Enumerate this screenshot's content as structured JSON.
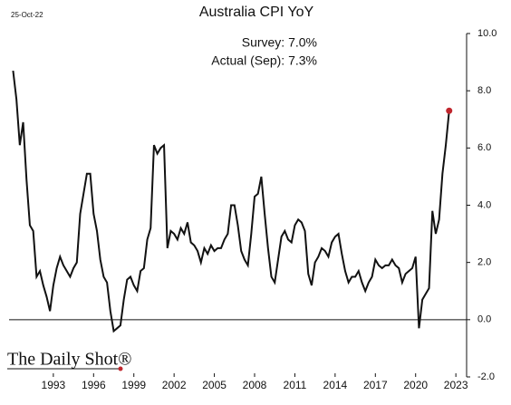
{
  "chart_data": {
    "type": "line",
    "title": "Australia CPI YoY",
    "date": "25-Oct-22",
    "annotations": [
      "Survey: 7.0%",
      "Actual (Sep): 7.3%"
    ],
    "source": "The Daily Shot®",
    "x": [
      1990.0,
      1990.25,
      1990.5,
      1990.75,
      1991.0,
      1991.25,
      1991.5,
      1991.75,
      1992.0,
      1992.25,
      1992.5,
      1992.75,
      1993.0,
      1993.25,
      1993.5,
      1993.75,
      1994.0,
      1994.25,
      1994.5,
      1994.75,
      1995.0,
      1995.25,
      1995.5,
      1995.75,
      1996.0,
      1996.25,
      1996.5,
      1996.75,
      1997.0,
      1997.25,
      1997.5,
      1997.75,
      1998.0,
      1998.25,
      1998.5,
      1998.75,
      1999.0,
      1999.25,
      1999.5,
      1999.75,
      2000.0,
      2000.25,
      2000.5,
      2000.75,
      2001.0,
      2001.25,
      2001.5,
      2001.75,
      2002.0,
      2002.25,
      2002.5,
      2002.75,
      2003.0,
      2003.25,
      2003.5,
      2003.75,
      2004.0,
      2004.25,
      2004.5,
      2004.75,
      2005.0,
      2005.25,
      2005.5,
      2005.75,
      2006.0,
      2006.25,
      2006.5,
      2006.75,
      2007.0,
      2007.25,
      2007.5,
      2007.75,
      2008.0,
      2008.25,
      2008.5,
      2008.75,
      2009.0,
      2009.25,
      2009.5,
      2009.75,
      2010.0,
      2010.25,
      2010.5,
      2010.75,
      2011.0,
      2011.25,
      2011.5,
      2011.75,
      2012.0,
      2012.25,
      2012.5,
      2012.75,
      2013.0,
      2013.25,
      2013.5,
      2013.75,
      2014.0,
      2014.25,
      2014.5,
      2014.75,
      2015.0,
      2015.25,
      2015.5,
      2015.75,
      2016.0,
      2016.25,
      2016.5,
      2016.75,
      2017.0,
      2017.25,
      2017.5,
      2017.75,
      2018.0,
      2018.25,
      2018.5,
      2018.75,
      2019.0,
      2019.25,
      2019.5,
      2019.75,
      2020.0,
      2020.25,
      2020.5,
      2020.75,
      2021.0,
      2021.25,
      2021.5,
      2021.75,
      2022.0,
      2022.25,
      2022.5
    ],
    "series": [
      {
        "color": "#111111",
        "highlight_color": "#c0262d",
        "values": [
          8.7,
          7.7,
          6.1,
          6.9,
          4.9,
          3.3,
          3.1,
          1.5,
          1.7,
          1.2,
          0.8,
          0.3,
          1.2,
          1.8,
          2.2,
          1.9,
          1.7,
          1.5,
          1.8,
          2.0,
          3.7,
          4.4,
          5.1,
          5.1,
          3.7,
          3.1,
          2.1,
          1.5,
          1.3,
          0.3,
          -0.4,
          -0.3,
          -0.2,
          0.7,
          1.4,
          1.5,
          1.2,
          1.0,
          1.7,
          1.8,
          2.8,
          3.2,
          6.1,
          5.8,
          6.0,
          6.1,
          2.5,
          3.1,
          3.0,
          2.8,
          3.2,
          3.0,
          3.4,
          2.7,
          2.6,
          2.4,
          2.0,
          2.5,
          2.3,
          2.6,
          2.4,
          2.5,
          2.5,
          2.8,
          3.0,
          4.0,
          4.0,
          3.3,
          2.4,
          2.1,
          1.9,
          3.0,
          4.3,
          4.4,
          5.0,
          3.7,
          2.5,
          1.5,
          1.3,
          2.1,
          2.9,
          3.1,
          2.8,
          2.7,
          3.3,
          3.5,
          3.4,
          3.1,
          1.6,
          1.2,
          2.0,
          2.2,
          2.5,
          2.4,
          2.2,
          2.7,
          2.9,
          3.0,
          2.3,
          1.7,
          1.3,
          1.5,
          1.5,
          1.7,
          1.3,
          1.0,
          1.3,
          1.5,
          2.1,
          1.9,
          1.8,
          1.9,
          1.9,
          2.1,
          1.9,
          1.8,
          1.3,
          1.6,
          1.7,
          1.8,
          2.2,
          -0.3,
          0.7,
          0.9,
          1.1,
          3.8,
          3.0,
          3.5,
          5.1,
          6.1,
          7.3
        ]
      }
    ],
    "xlim": [
      1989.7,
      2023.8
    ],
    "xticks": [
      1993,
      1996,
      1999,
      2002,
      2005,
      2008,
      2011,
      2014,
      2017,
      2020,
      2023
    ],
    "ylim": [
      -2,
      10
    ],
    "yticks": [
      {
        "value": -2,
        "label": "-2.0"
      },
      {
        "value": 0,
        "label": "0.0"
      },
      {
        "value": 2,
        "label": "2.0"
      },
      {
        "value": 4,
        "label": "4.0"
      },
      {
        "value": 6,
        "label": "6.0"
      },
      {
        "value": 8,
        "label": "8.0"
      },
      {
        "value": 10,
        "label": "10.0"
      }
    ],
    "zero_line": true
  }
}
